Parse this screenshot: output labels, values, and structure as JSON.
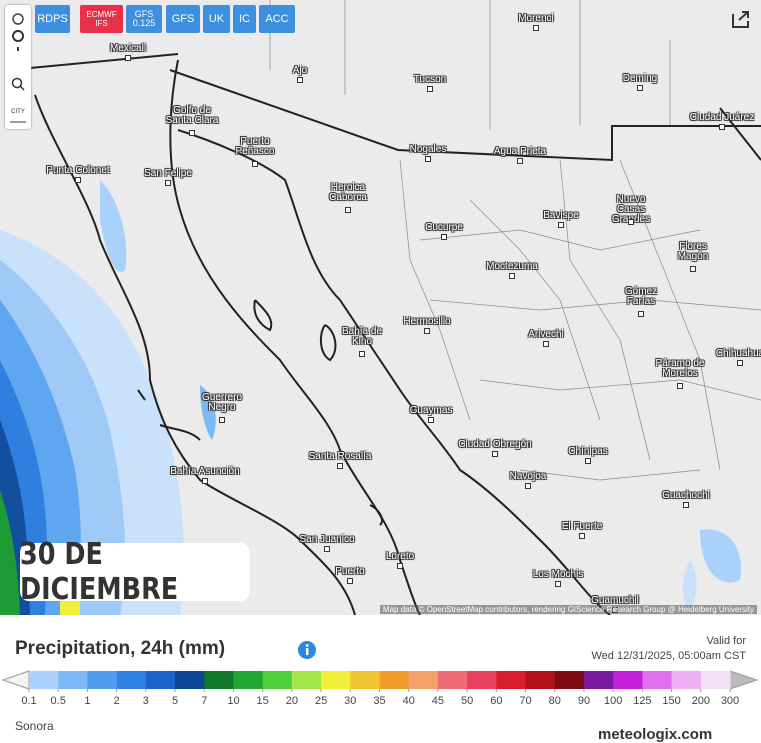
{
  "toolbar": {
    "buttons": [
      "RDPS",
      "ECMWF IFS",
      "GFS 0.125",
      "GFS",
      "UK",
      "IC",
      "ACC"
    ],
    "city_tool": "CITY"
  },
  "map": {
    "cities": [
      "Mexicali",
      "Morenci",
      "Ajo",
      "Tucson",
      "Deming",
      "Ciudad Juárez",
      "Golfo de Santa Clara",
      "Puerto Peñasco",
      "Nogales",
      "Agua Prieta",
      "Punta Colonet",
      "San Felipe",
      "Heroica Caborca",
      "Bavispe",
      "Nuevo Casas Grandes",
      "Cucurpe",
      "Flores Magón",
      "Moctezuma",
      "Gómez Farías",
      "Bahía de Kino",
      "Hermosillo",
      "Arivechi",
      "Chihuahua",
      "Páramo de Morelos",
      "Guerrero Negro",
      "Guaymas",
      "Ciudad Obregón",
      "Chínipas",
      "Santa Rosalía",
      "Navojoa",
      "Bahía Asunción",
      "Guachochi",
      "El Fuerte",
      "San Juanico",
      "Loreto",
      "Los Mochis",
      "Guamuchil",
      "Puerto"
    ],
    "date_badge": "30 DE DICIEMBRE",
    "attribution": "Map data © OpenStreetMap contributors, rendering GIScience Research Group @ Heidelberg University"
  },
  "legend": {
    "title": "Precipitation, 24h (mm)",
    "valid_label": "Valid for",
    "valid_time": "Wed 12/31/2025, 05:00am CST",
    "ticks": [
      0.1,
      0.5,
      1,
      2,
      3,
      5,
      7,
      10,
      15,
      20,
      25,
      30,
      35,
      40,
      45,
      50,
      60,
      70,
      80,
      90,
      100,
      125,
      150,
      200,
      300
    ],
    "colors": [
      "#a9d1fb",
      "#7db8f7",
      "#4f9cf0",
      "#2f82e6",
      "#1b63c8",
      "#0f4596",
      "#0f7a2e",
      "#20a632",
      "#4fcf3a",
      "#a5e64a",
      "#f1ef3a",
      "#f0c531",
      "#f39a2c",
      "#f3a06a",
      "#f06a74",
      "#e8405e",
      "#d81e2c",
      "#b4101a",
      "#7e0a12",
      "#7a1aa0",
      "#c41ed8",
      "#e070f0",
      "#eeb0f5",
      "#f5e0f7"
    ]
  },
  "footer": {
    "region": "Sonora",
    "brand": "meteologix.com"
  }
}
